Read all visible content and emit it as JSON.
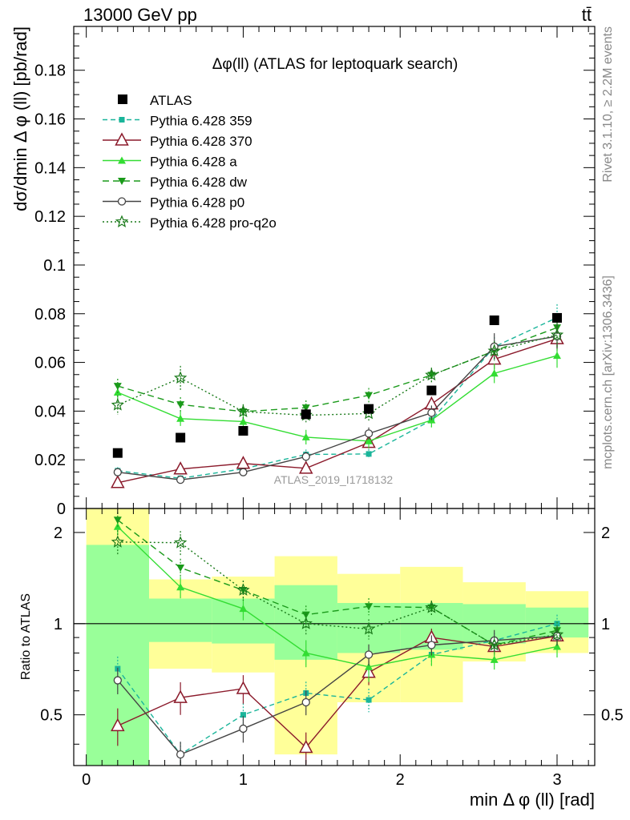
{
  "header": {
    "left": "13000 GeV pp",
    "right": "tt̄"
  },
  "side_texts": {
    "top": "Rivet 3.1.10, ≥ 2.2M events",
    "bottom": "mcplots.cern.ch [arXiv:1306.3436]"
  },
  "chart_data": {
    "type": "scatter",
    "title": "Δφ(ll) (ATLAS for leptoquark search)",
    "watermark": "ATLAS_2019_I1718132",
    "xlabel": "min Δ φ (ll) [rad]",
    "ylabel": "dσ/dmin Δ φ (ll) [pb/rad]",
    "ratio_ylabel": "Ratio to ATLAS",
    "xlim": [
      -0.08,
      3.24
    ],
    "ylim": [
      0,
      0.198
    ],
    "ratio_ylim": [
      0.34,
      2.4
    ],
    "ratio_scale": "log",
    "x_ticks": [
      "0",
      "1",
      "2",
      "3"
    ],
    "y_ticks": [
      "0",
      "0.02",
      "0.04",
      "0.06",
      "0.08",
      "0.1",
      "0.12",
      "0.14",
      "0.16",
      "0.18"
    ],
    "ratio_ticks": [
      "0.5",
      "1",
      "2"
    ],
    "x": [
      0.2,
      0.6,
      1.0,
      1.4,
      1.8,
      2.2,
      2.6,
      3.0
    ],
    "bin_edges": [
      0,
      0.4,
      0.8,
      1.2,
      1.6,
      2.0,
      2.4,
      2.8,
      3.2
    ],
    "data": {
      "name": "ATLAS",
      "values": [
        0.0228,
        0.0291,
        0.0319,
        0.0387,
        0.0409,
        0.0485,
        0.0773,
        0.0783
      ]
    },
    "ratio_bands": {
      "green": [
        [
          0.34,
          1.82
        ],
        [
          0.87,
          1.21
        ],
        [
          0.86,
          1.21
        ],
        [
          0.76,
          1.34
        ],
        [
          0.8,
          1.17
        ],
        [
          0.82,
          1.17
        ],
        [
          0.86,
          1.16
        ],
        [
          0.9,
          1.13
        ]
      ],
      "yellow": [
        [
          0.34,
          2.4
        ],
        [
          0.71,
          1.4
        ],
        [
          0.69,
          1.43
        ],
        [
          0.37,
          1.67
        ],
        [
          0.55,
          1.46
        ],
        [
          0.55,
          1.54
        ],
        [
          0.75,
          1.37
        ],
        [
          0.8,
          1.28
        ]
      ]
    },
    "series": [
      {
        "name": "Pythia 6.428 359",
        "color": "#1ab59a",
        "dash": "6,4",
        "marker": "square-small",
        "values": [
          0.0155,
          0.0124,
          0.0163,
          0.0222,
          0.0224,
          0.0363,
          0.0664,
          0.0784
        ],
        "errors": [
          0.0015,
          0.0012,
          0.0015,
          0.002,
          0.002,
          0.003,
          0.004,
          0.0055
        ],
        "ratio": [
          0.71,
          0.37,
          0.5,
          0.59,
          0.56,
          0.79,
          0.88,
          1.0
        ]
      },
      {
        "name": "Pythia 6.428 370",
        "color": "#8b1a2b",
        "dash": "",
        "marker": "triangle-open",
        "values": [
          0.0106,
          0.0162,
          0.0185,
          0.0165,
          0.0271,
          0.0429,
          0.0613,
          0.0697
        ],
        "errors": [
          0.0015,
          0.002,
          0.002,
          0.002,
          0.0025,
          0.003,
          0.004,
          0.005
        ],
        "ratio": [
          0.46,
          0.57,
          0.61,
          0.39,
          0.69,
          0.9,
          0.84,
          0.91
        ]
      },
      {
        "name": "Pythia 6.428 a",
        "color": "#33dd33",
        "dash": "",
        "marker": "triangle-filled",
        "values": [
          0.0477,
          0.0369,
          0.0357,
          0.0293,
          0.0277,
          0.0363,
          0.0555,
          0.0628
        ],
        "errors": [
          0.003,
          0.003,
          0.003,
          0.003,
          0.003,
          0.003,
          0.004,
          0.005
        ],
        "ratio": [
          2.09,
          1.32,
          1.12,
          0.8,
          0.72,
          0.79,
          0.76,
          0.84
        ]
      },
      {
        "name": "Pythia 6.428 dw",
        "color": "#1a9a1a",
        "dash": "8,5",
        "marker": "triangle-down-filled",
        "values": [
          0.0503,
          0.0427,
          0.0398,
          0.0414,
          0.0465,
          0.0548,
          0.0647,
          0.0743
        ],
        "errors": [
          0.003,
          0.003,
          0.003,
          0.003,
          0.003,
          0.003,
          0.004,
          0.005
        ],
        "ratio": [
          2.2,
          1.53,
          1.29,
          1.07,
          1.14,
          1.13,
          0.85,
          0.95
        ]
      },
      {
        "name": "Pythia 6.428 p0",
        "color": "#444444",
        "dash": "",
        "marker": "circle-open",
        "values": [
          0.0149,
          0.0118,
          0.0149,
          0.0213,
          0.0308,
          0.0393,
          0.0665,
          0.0707
        ],
        "errors": [
          0.0015,
          0.0012,
          0.0015,
          0.002,
          0.0025,
          0.003,
          0.0055,
          0.005
        ],
        "ratio": [
          0.65,
          0.37,
          0.45,
          0.55,
          0.79,
          0.85,
          0.88,
          0.91
        ]
      },
      {
        "name": "Pythia 6.428 pro-q2o",
        "color": "#1a7a1a",
        "dash": "2,3",
        "marker": "star-open",
        "values": [
          0.0425,
          0.0536,
          0.0398,
          0.0383,
          0.039,
          0.0548,
          0.0647,
          0.0713
        ],
        "errors": [
          0.004,
          0.005,
          0.003,
          0.003,
          0.003,
          0.003,
          0.004,
          0.005
        ],
        "ratio": [
          1.86,
          1.85,
          1.29,
          1.0,
          0.96,
          1.13,
          0.85,
          0.92
        ]
      }
    ]
  }
}
